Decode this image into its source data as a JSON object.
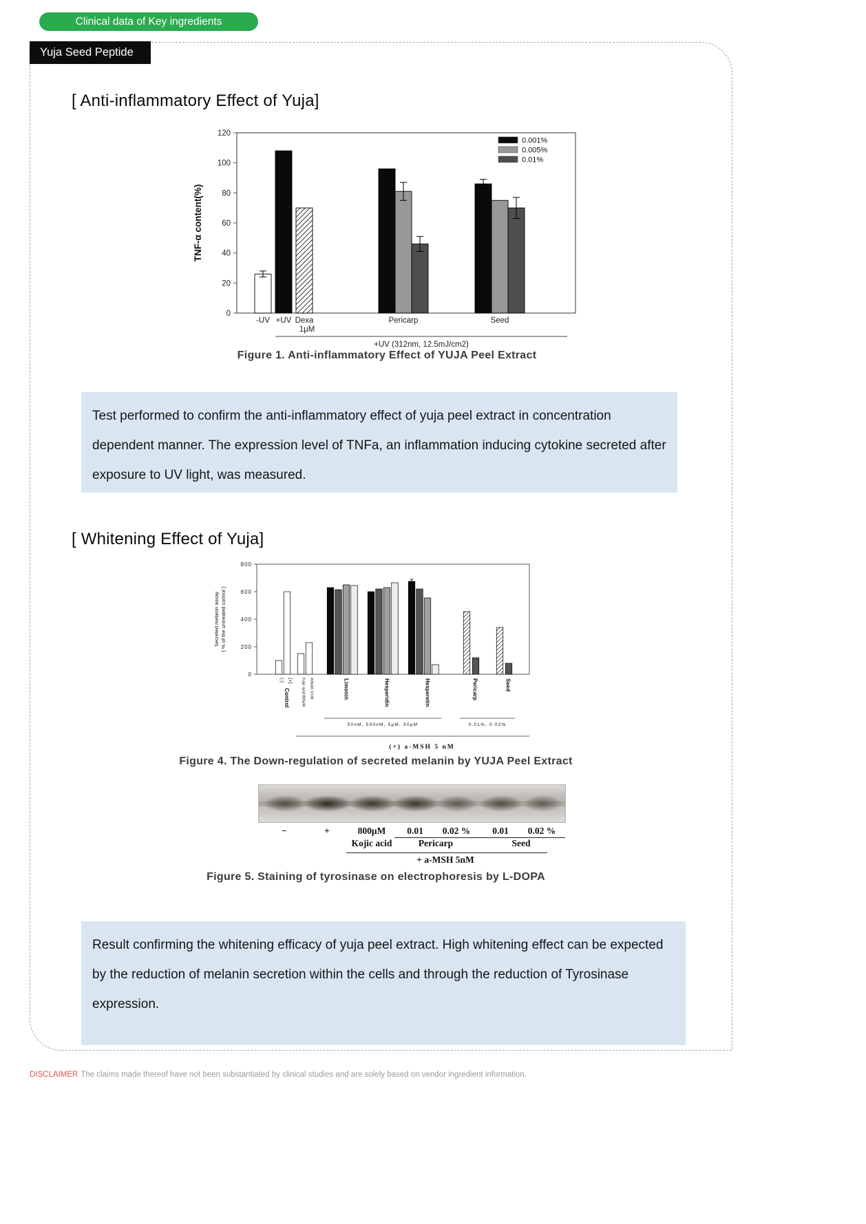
{
  "theme": {
    "badge_green": "#2aab4d",
    "badge_black": "#0c0c0c",
    "info_box_blue": "#d9e6f2",
    "disclaimer_red": "#e0524e"
  },
  "header": {
    "category_badge": "Clinical data of Key ingredients",
    "ingredient_badge": "Yuja Seed Peptide"
  },
  "anti_inflammatory": {
    "heading": "[ Anti-inflammatory Effect of Yuja]",
    "description": "Test performed to confirm the anti-inflammatory effect of yuja peel extract in concentration dependent manner. The expression level of TNFa, an inflammation inducing cytokine secreted after exposure to UV light, was measured."
  },
  "whitening": {
    "heading": "[ Whitening Effect of Yuja]",
    "figure5_caption": "Figure 5. Staining of tyrosinase on electrophoresis by L-DOPA",
    "description": "Result confirming the whitening efficacy of yuja peel extract. High whitening effect can be expected by the reduction of melanin secretion within the cells and through the reduction of Tyrosinase expression."
  },
  "chart_data": [
    {
      "id": "figure1",
      "type": "bar",
      "title": "Figure 1. Anti-inflammatory Effect of YUJA Peel Extract",
      "ylabel": "TNF-α content(%)",
      "ylim": [
        0,
        120
      ],
      "yticks": [
        0,
        20,
        40,
        60,
        80,
        100,
        120
      ],
      "legend_position": "top-right-inside",
      "legend": [
        {
          "label": "0.001%",
          "fill": "#0a0a0a"
        },
        {
          "label": "0.005%",
          "fill": "#989898"
        },
        {
          "label": "0.01%",
          "fill": "#4e4e4e"
        }
      ],
      "x_annotation": "+UV (312nm, 12.5mJ/cm2)",
      "groups": [
        {
          "label": "-UV",
          "bars": [
            {
              "value": 26,
              "fill": "white",
              "err": 2
            }
          ]
        },
        {
          "label": "+UV",
          "bars": [
            {
              "value": 108,
              "fill": "black"
            }
          ]
        },
        {
          "label": "Dexa 1μM",
          "bars": [
            {
              "value": 70,
              "fill": "hatch"
            }
          ]
        },
        {
          "label": "Pericarp",
          "bars": [
            {
              "value": 96,
              "fill": "black"
            },
            {
              "value": 81,
              "fill": "gray",
              "err": 6
            },
            {
              "value": 46,
              "fill": "dark",
              "err": 5
            }
          ]
        },
        {
          "label": "Seed",
          "bars": [
            {
              "value": 86,
              "fill": "black",
              "err": 3
            },
            {
              "value": 75,
              "fill": "gray"
            },
            {
              "value": 70,
              "fill": "dark",
              "err": 7
            }
          ]
        }
      ]
    },
    {
      "id": "figure4",
      "type": "bar",
      "title": "Figure 4. The Down-regulation of secreted melanin by YUJA Peel Extract",
      "ylabel": [
        "Secreted melanin assay",
        "( % of the untreated control )"
      ],
      "ylim": [
        0,
        800
      ],
      "yticks": [
        0,
        200,
        400,
        600,
        800
      ],
      "x_annotation": "(+)  a-MSH  5 nM",
      "dose_labels": [
        {
          "text": "50nM, 500nM, 5μM, 50μM"
        },
        {
          "text": "0.01%, 0.02%"
        }
      ],
      "groups": [
        {
          "label": "Control",
          "bars": [
            {
              "value": 100,
              "fill": "white",
              "tick": "(-)"
            },
            {
              "value": 600,
              "fill": "white",
              "tick": "(+)"
            }
          ]
        },
        {
          "label": "",
          "bars": [
            {
              "value": 150,
              "fill": "white",
              "tick": "Kojic acid 800μM"
            },
            {
              "value": 230,
              "fill": "white",
              "tick": "Arbutin 1mM"
            }
          ]
        },
        {
          "label": "Limonin",
          "bars": [
            {
              "value": 630,
              "fill": "black"
            },
            {
              "value": 615,
              "fill": "dark"
            },
            {
              "value": 650,
              "fill": "gray"
            },
            {
              "value": 645,
              "fill": "light"
            }
          ]
        },
        {
          "label": "Hesperidin",
          "bars": [
            {
              "value": 600,
              "fill": "black"
            },
            {
              "value": 620,
              "fill": "dark"
            },
            {
              "value": 630,
              "fill": "gray"
            },
            {
              "value": 665,
              "fill": "light"
            }
          ]
        },
        {
          "label": "Hesperetin",
          "bars": [
            {
              "value": 675,
              "fill": "black",
              "err": 15
            },
            {
              "value": 620,
              "fill": "dark"
            },
            {
              "value": 555,
              "fill": "gray"
            },
            {
              "value": 70,
              "fill": "light"
            }
          ]
        },
        {
          "label": "Pericarp",
          "bars": [
            {
              "value": 455,
              "fill": "hatch"
            },
            {
              "value": 120,
              "fill": "dark"
            }
          ]
        },
        {
          "label": "Seed",
          "bars": [
            {
              "value": 340,
              "fill": "hatch"
            },
            {
              "value": 80,
              "fill": "dark"
            }
          ]
        }
      ]
    }
  ],
  "gel": {
    "lanes": [
      {
        "label": "−",
        "intensity": 0.55
      },
      {
        "label": "+",
        "intensity": 0.95
      },
      {
        "label": "800μM",
        "sub": "Kojic acid",
        "intensity": 0.8
      },
      {
        "label": "0.01",
        "intensity": 0.8
      },
      {
        "label": "0.02 %",
        "intensity": 0.4
      },
      {
        "label": "0.01",
        "intensity": 0.55
      },
      {
        "label": "0.02 %",
        "intensity": 0.35
      }
    ],
    "groups": [
      {
        "label": "Pericarp"
      },
      {
        "label": "Seed"
      }
    ],
    "bottom_annotation": "+ a-MSH 5nM"
  },
  "disclaimer": {
    "label": "DISCLAIMER",
    "text": "The claims made thereof have not been substantiated by clinical studies and are solely based on vendor ingredient information."
  }
}
